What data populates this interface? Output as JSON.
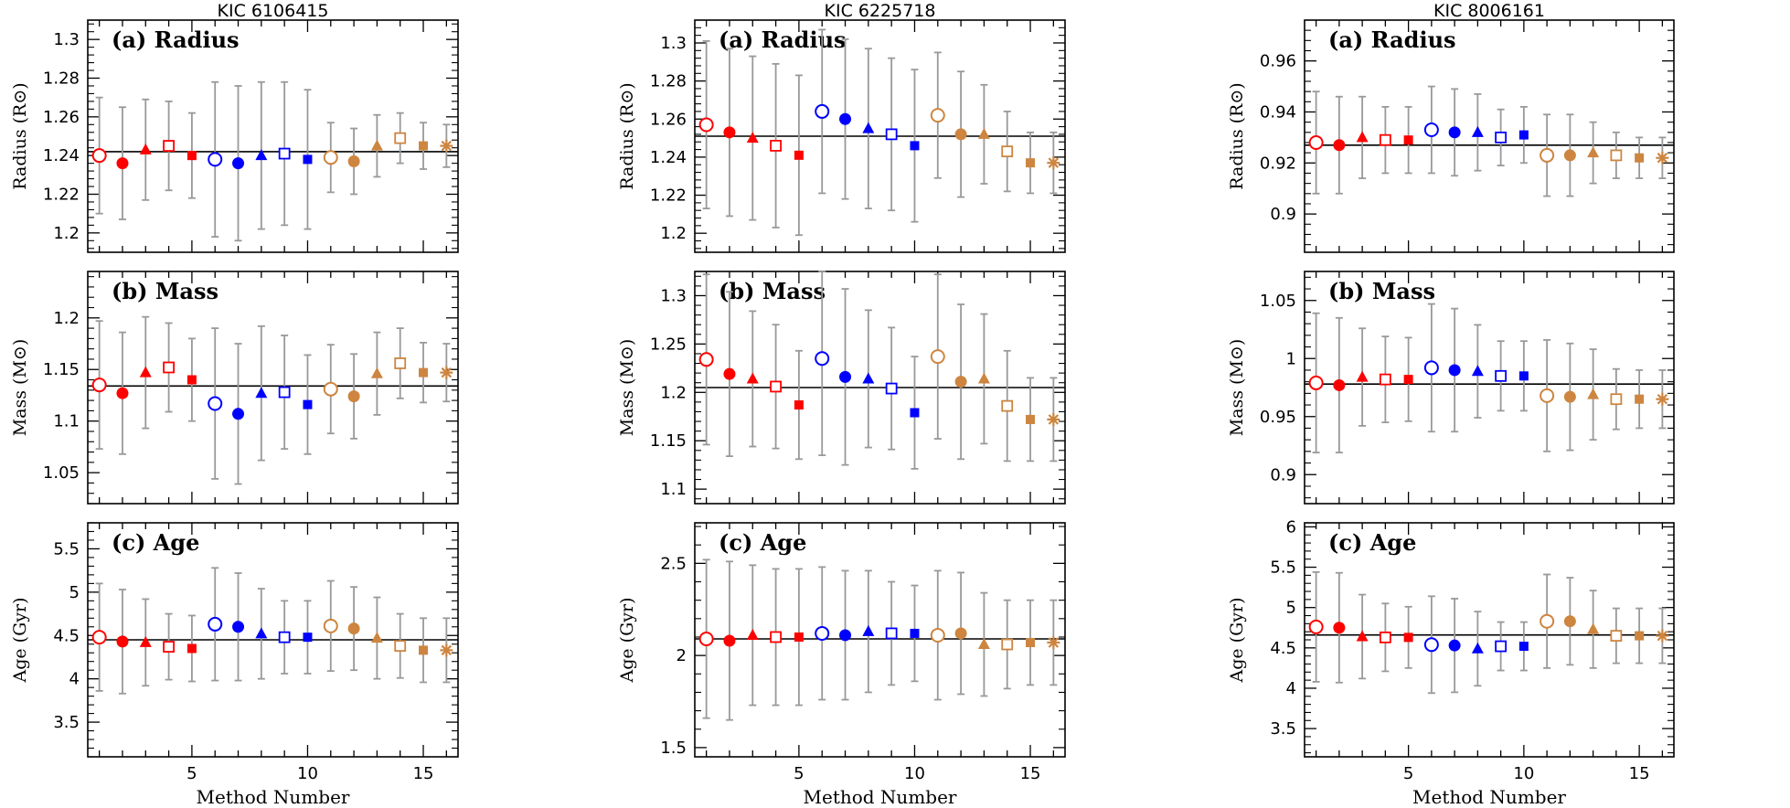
{
  "colors": {
    "red": "#ff0000",
    "blue": "#0000ff",
    "orange": "#cd853f",
    "errorbar": "#999999",
    "refline": "#000000"
  },
  "method_styles": [
    {
      "method": 1,
      "color": "red",
      "marker": "open-circle"
    },
    {
      "method": 2,
      "color": "red",
      "marker": "filled-circle"
    },
    {
      "method": 3,
      "color": "red",
      "marker": "filled-triangle"
    },
    {
      "method": 4,
      "color": "red",
      "marker": "open-square"
    },
    {
      "method": 5,
      "color": "red",
      "marker": "filled-square"
    },
    {
      "method": 6,
      "color": "blue",
      "marker": "open-circle"
    },
    {
      "method": 7,
      "color": "blue",
      "marker": "filled-circle"
    },
    {
      "method": 8,
      "color": "blue",
      "marker": "filled-triangle"
    },
    {
      "method": 9,
      "color": "blue",
      "marker": "open-square"
    },
    {
      "method": 10,
      "color": "blue",
      "marker": "filled-square"
    },
    {
      "method": 11,
      "color": "orange",
      "marker": "open-circle"
    },
    {
      "method": 12,
      "color": "orange",
      "marker": "filled-circle"
    },
    {
      "method": 13,
      "color": "orange",
      "marker": "filled-triangle"
    },
    {
      "method": 14,
      "color": "orange",
      "marker": "open-square"
    },
    {
      "method": 15,
      "color": "orange",
      "marker": "filled-square"
    },
    {
      "method": 16,
      "color": "orange",
      "marker": "asterisk"
    }
  ],
  "chart_data": [
    {
      "type": "scatter",
      "title": "KIC 6106415",
      "xlabel": "Method Number",
      "xlim": [
        0.5,
        16.5
      ],
      "xticks": [
        5,
        10,
        15
      ],
      "panels": [
        {
          "label": "(a) Radius",
          "ylabel": "Radius (R⊙)",
          "ylim": [
            1.19,
            1.31
          ],
          "yticks": [
            1.2,
            1.22,
            1.24,
            1.26,
            1.28,
            1.3
          ],
          "ytick_labels": [
            "1.2",
            "1.22",
            "1.24",
            "1.26",
            "1.28",
            "1.3"
          ],
          "ref": 1.242,
          "y": [
            1.24,
            1.236,
            1.243,
            1.245,
            1.24,
            1.238,
            1.236,
            1.24,
            1.241,
            1.238,
            1.239,
            1.237,
            1.245,
            1.249,
            1.245,
            1.245
          ],
          "err": [
            0.03,
            0.029,
            0.026,
            0.023,
            0.022,
            0.04,
            0.04,
            0.038,
            0.037,
            0.036,
            0.018,
            0.017,
            0.016,
            0.013,
            0.012,
            0.011
          ]
        },
        {
          "label": "(b) Mass",
          "ylabel": "Mass (M⊙)",
          "ylim": [
            1.02,
            1.245
          ],
          "yticks": [
            1.05,
            1.1,
            1.15,
            1.2
          ],
          "ytick_labels": [
            "1.05",
            "1.1",
            "1.15",
            "1.2"
          ],
          "ref": 1.134,
          "y": [
            1.135,
            1.127,
            1.147,
            1.152,
            1.14,
            1.117,
            1.107,
            1.127,
            1.128,
            1.116,
            1.131,
            1.124,
            1.146,
            1.156,
            1.147,
            1.147
          ],
          "err": [
            0.062,
            0.059,
            0.054,
            0.043,
            0.04,
            0.073,
            0.068,
            0.065,
            0.055,
            0.048,
            0.043,
            0.041,
            0.04,
            0.034,
            0.029,
            0.028
          ]
        },
        {
          "label": "(c) Age",
          "ylabel": "Age (Gyr)",
          "ylim": [
            3.1,
            5.8
          ],
          "yticks": [
            3.5,
            4,
            4.5,
            5,
            5.5
          ],
          "ytick_labels": [
            "3.5",
            "4",
            "4.5",
            "5",
            "5.5"
          ],
          "ref": 4.45,
          "y": [
            4.48,
            4.43,
            4.42,
            4.37,
            4.35,
            4.63,
            4.6,
            4.52,
            4.48,
            4.48,
            4.61,
            4.58,
            4.47,
            4.38,
            4.33,
            4.33
          ],
          "err": [
            0.62,
            0.6,
            0.5,
            0.38,
            0.38,
            0.65,
            0.62,
            0.52,
            0.42,
            0.42,
            0.52,
            0.48,
            0.47,
            0.37,
            0.37,
            0.37
          ]
        }
      ]
    },
    {
      "type": "scatter",
      "title": "KIC 6225718",
      "xlabel": "Method Number",
      "xlim": [
        0.5,
        16.5
      ],
      "xticks": [
        5,
        10,
        15
      ],
      "panels": [
        {
          "label": "(a) Radius",
          "ylabel": "Radius (R⊙)",
          "ylim": [
            1.19,
            1.312
          ],
          "yticks": [
            1.2,
            1.22,
            1.24,
            1.26,
            1.28,
            1.3
          ],
          "ytick_labels": [
            "1.2",
            "1.22",
            "1.24",
            "1.26",
            "1.28",
            "1.3"
          ],
          "ref": 1.251,
          "y": [
            1.257,
            1.253,
            1.25,
            1.246,
            1.241,
            1.264,
            1.26,
            1.255,
            1.252,
            1.246,
            1.262,
            1.252,
            1.252,
            1.243,
            1.237,
            1.237
          ],
          "err": [
            0.044,
            0.044,
            0.043,
            0.043,
            0.042,
            0.043,
            0.042,
            0.042,
            0.04,
            0.04,
            0.033,
            0.033,
            0.026,
            0.021,
            0.016,
            0.016
          ]
        },
        {
          "label": "(b) Mass",
          "ylabel": "Mass (M⊙)",
          "ylim": [
            1.085,
            1.325
          ],
          "yticks": [
            1.1,
            1.15,
            1.2,
            1.25,
            1.3
          ],
          "ytick_labels": [
            "1.1",
            "1.15",
            "1.2",
            "1.25",
            "1.3"
          ],
          "ref": 1.205,
          "y": [
            1.234,
            1.219,
            1.214,
            1.206,
            1.187,
            1.235,
            1.216,
            1.214,
            1.204,
            1.179,
            1.237,
            1.211,
            1.214,
            1.186,
            1.172,
            1.172
          ],
          "err": [
            0.088,
            0.085,
            0.07,
            0.064,
            0.056,
            0.1,
            0.091,
            0.071,
            0.063,
            0.058,
            0.085,
            0.08,
            0.067,
            0.057,
            0.043,
            0.043
          ]
        },
        {
          "label": "(c) Age",
          "ylabel": "Age (Gyr)",
          "ylim": [
            1.45,
            2.72
          ],
          "yticks": [
            1.5,
            2,
            2.5
          ],
          "ytick_labels": [
            "1.5",
            "2",
            "2.5"
          ],
          "ref": 2.09,
          "y": [
            2.09,
            2.08,
            2.11,
            2.1,
            2.1,
            2.12,
            2.11,
            2.13,
            2.12,
            2.12,
            2.11,
            2.12,
            2.06,
            2.06,
            2.07,
            2.07
          ],
          "err": [
            0.43,
            0.43,
            0.38,
            0.37,
            0.37,
            0.36,
            0.35,
            0.33,
            0.28,
            0.26,
            0.35,
            0.33,
            0.28,
            0.24,
            0.23,
            0.23
          ]
        }
      ]
    },
    {
      "type": "scatter",
      "title": "KIC 8006161",
      "xlabel": "Method Number",
      "xlim": [
        0.5,
        16.5
      ],
      "xticks": [
        5,
        10,
        15
      ],
      "panels": [
        {
          "label": "(a) Radius",
          "ylabel": "Radius (R⊙)",
          "ylim": [
            0.885,
            0.976
          ],
          "yticks": [
            0.9,
            0.92,
            0.94,
            0.96
          ],
          "ytick_labels": [
            "0.9",
            "0.92",
            "0.94",
            "0.96"
          ],
          "ref": 0.927,
          "y": [
            0.928,
            0.927,
            0.93,
            0.929,
            0.929,
            0.933,
            0.932,
            0.932,
            0.93,
            0.931,
            0.923,
            0.923,
            0.924,
            0.923,
            0.922,
            0.922
          ],
          "err": [
            0.02,
            0.019,
            0.016,
            0.013,
            0.013,
            0.017,
            0.017,
            0.015,
            0.011,
            0.011,
            0.016,
            0.016,
            0.012,
            0.009,
            0.008,
            0.008
          ]
        },
        {
          "label": "(b) Mass",
          "ylabel": "Mass (M⊙)",
          "ylim": [
            0.875,
            1.075
          ],
          "yticks": [
            0.9,
            0.95,
            1,
            1.05
          ],
          "ytick_labels": [
            "0.9",
            "0.95",
            "1",
            "1.05"
          ],
          "ref": 0.978,
          "y": [
            0.979,
            0.977,
            0.984,
            0.982,
            0.982,
            0.992,
            0.99,
            0.989,
            0.985,
            0.985,
            0.968,
            0.967,
            0.969,
            0.965,
            0.965,
            0.965
          ],
          "err": [
            0.06,
            0.058,
            0.042,
            0.037,
            0.036,
            0.055,
            0.053,
            0.04,
            0.03,
            0.03,
            0.048,
            0.046,
            0.039,
            0.026,
            0.025,
            0.025
          ]
        },
        {
          "label": "(c) Age",
          "ylabel": "Age (Gyr)",
          "ylim": [
            3.15,
            6.05
          ],
          "yticks": [
            3.5,
            4,
            4.5,
            5,
            5.5,
            6
          ],
          "ytick_labels": [
            "3.5",
            "4",
            "4.5",
            "5",
            "5.5",
            "6"
          ],
          "ref": 4.66,
          "y": [
            4.76,
            4.75,
            4.64,
            4.63,
            4.63,
            4.54,
            4.53,
            4.49,
            4.52,
            4.52,
            4.83,
            4.83,
            4.73,
            4.65,
            4.65,
            4.65
          ],
          "err": [
            0.68,
            0.68,
            0.52,
            0.42,
            0.38,
            0.6,
            0.58,
            0.46,
            0.3,
            0.3,
            0.58,
            0.54,
            0.48,
            0.34,
            0.34,
            0.34
          ]
        }
      ]
    }
  ]
}
